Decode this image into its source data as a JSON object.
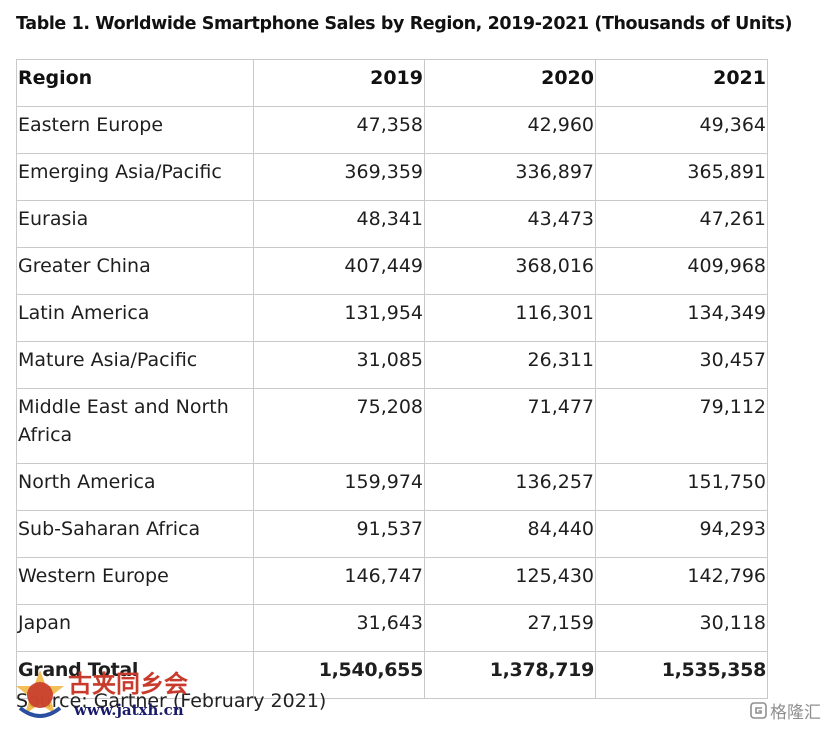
{
  "title": "Table 1. Worldwide Smartphone Sales by Region, 2019-2021 (Thousands of Units)",
  "table": {
    "headers": [
      "Region",
      "2019",
      "2020",
      "2021"
    ],
    "rows": [
      {
        "region": "Eastern Europe",
        "values": [
          "47,358",
          "42,960",
          "49,364"
        ]
      },
      {
        "region": "Emerging Asia/Pacific",
        "values": [
          "369,359",
          "336,897",
          "365,891"
        ]
      },
      {
        "region": "Eurasia",
        "values": [
          "48,341",
          "43,473",
          "47,261"
        ]
      },
      {
        "region": "Greater China",
        "values": [
          "407,449",
          "368,016",
          "409,968"
        ]
      },
      {
        "region": "Latin America",
        "values": [
          "131,954",
          "116,301",
          "134,349"
        ]
      },
      {
        "region": "Mature Asia/Pacific",
        "values": [
          "31,085",
          "26,311",
          "30,457"
        ]
      },
      {
        "region": "Middle East and North Africa",
        "values": [
          "75,208",
          "71,477",
          "79,112"
        ]
      },
      {
        "region": "North America",
        "values": [
          "159,974",
          "136,257",
          "151,750"
        ]
      },
      {
        "region": "Sub-Saharan Africa",
        "values": [
          "91,537",
          "84,440",
          "94,293"
        ]
      },
      {
        "region": "Western Europe",
        "values": [
          "146,747",
          "125,430",
          "142,796"
        ]
      },
      {
        "region": "Japan",
        "values": [
          "31,643",
          "27,159",
          "30,118"
        ]
      }
    ],
    "total": {
      "label": "Grand Total",
      "values": [
        "1,540,655",
        "1,378,719",
        "1,535,358"
      ]
    }
  },
  "source": "Source: Gartner (February 2021)",
  "watermark": {
    "site_name": "古夹同乡会",
    "url": "www.jatxh.cn",
    "corner_text": "格隆汇"
  },
  "colors": {
    "border": "#c9c9c9",
    "text": "#1e1e1e",
    "watermark_red": "#c83a2b",
    "watermark_navy": "#1a1a6a",
    "watermark_grey": "#8f8f8f"
  }
}
